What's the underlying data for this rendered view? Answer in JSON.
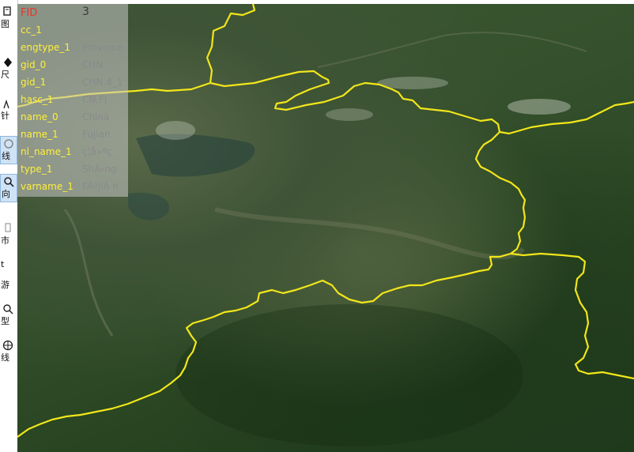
{
  "toolbar": {
    "items": [
      {
        "label": "图",
        "icon": "layer-icon"
      },
      {
        "label": "尺",
        "icon": "ruler-icon"
      },
      {
        "label": "针",
        "icon": "compass-icon"
      },
      {
        "label": "线",
        "icon": "line-icon",
        "active": true
      },
      {
        "label": "向",
        "icon": "search-icon",
        "active": true
      },
      {
        "label": "市",
        "icon": "building-icon"
      },
      {
        "label": "t",
        "icon": "tool-icon"
      },
      {
        "label": "游",
        "icon": "walk-icon"
      },
      {
        "label": "型",
        "icon": "model-icon"
      },
      {
        "label": "线",
        "icon": "globe-line-icon"
      }
    ]
  },
  "attributes": {
    "header": {
      "key": "FID",
      "value": "3"
    },
    "rows": [
      {
        "key": "cc_1",
        "value": ""
      },
      {
        "key": "engtype_1",
        "value": "Province"
      },
      {
        "key": "gid_0",
        "value": "CHN"
      },
      {
        "key": "gid_1",
        "value": "CHN.4_1"
      },
      {
        "key": "hasc_1",
        "value": "CN.FJ"
      },
      {
        "key": "name_0",
        "value": "China"
      },
      {
        "key": "name_1",
        "value": "Fujian"
      },
      {
        "key": "nl_name_1",
        "value": "ç¦å»ºç"
      },
      {
        "key": "type_1",
        "value": "ShÄ›ng"
      },
      {
        "key": "varname_1",
        "value": "FÃºjiÃ n"
      }
    ]
  },
  "map": {
    "boundary_color": "#f2e61a",
    "imagery": "satellite-terrain"
  },
  "colors": {
    "key_text": "#ffef3a",
    "fid_key": "#e8352b",
    "value_text": "#8a8a8a",
    "panel_bg": "rgba(200,200,200,0.55)"
  }
}
